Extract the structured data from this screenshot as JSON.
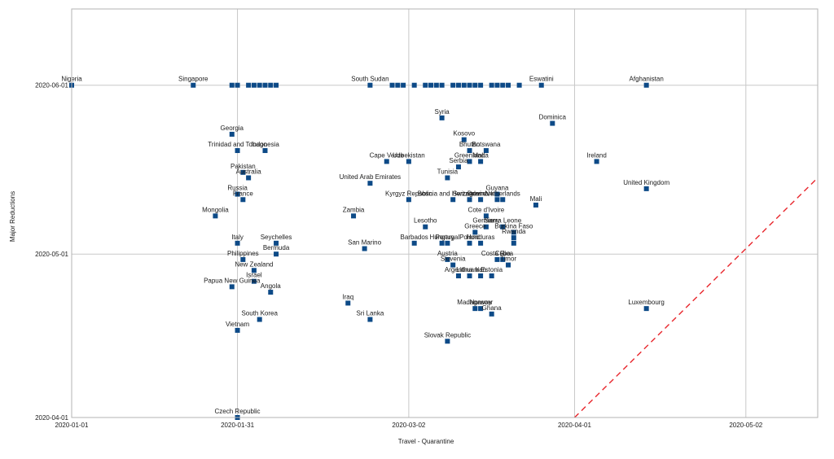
{
  "chart_data": {
    "type": "scatter",
    "title": "",
    "xlabel": "Travel - Quarantine",
    "ylabel": "Major Reductions",
    "x_type": "date",
    "y_type": "date",
    "xlim": [
      "2020-01-01",
      "2020-05-15"
    ],
    "ylim": [
      "2020-04-01",
      "2020-06-15"
    ],
    "x_ticks": [
      "2020-01-01",
      "2020-01-31",
      "2020-03-02",
      "2020-04-01",
      "2020-05-02"
    ],
    "y_ticks": [
      "2020-04-01",
      "2020-05-01",
      "2020-06-01"
    ],
    "grid": true,
    "legend": "none",
    "reference_line": {
      "style": "dashed",
      "color": "#e8262c",
      "description": "y = x"
    },
    "marker_color": "#0d4a87",
    "points": [
      {
        "label": "Nigeria",
        "x": "2020-01-01",
        "y": "2020-06-01"
      },
      {
        "label": "Singapore",
        "x": "2020-01-23",
        "y": "2020-06-01"
      },
      {
        "label": "",
        "x": "2020-01-30",
        "y": "2020-06-01"
      },
      {
        "label": "",
        "x": "2020-01-31",
        "y": "2020-06-01"
      },
      {
        "label": "",
        "x": "2020-02-02",
        "y": "2020-06-01"
      },
      {
        "label": "",
        "x": "2020-02-03",
        "y": "2020-06-01"
      },
      {
        "label": "",
        "x": "2020-02-04",
        "y": "2020-06-01"
      },
      {
        "label": "",
        "x": "2020-02-05",
        "y": "2020-06-01"
      },
      {
        "label": "",
        "x": "2020-02-06",
        "y": "2020-06-01"
      },
      {
        "label": "",
        "x": "2020-02-07",
        "y": "2020-06-01"
      },
      {
        "label": "South Sudan",
        "x": "2020-02-24",
        "y": "2020-06-01"
      },
      {
        "label": "",
        "x": "2020-02-28",
        "y": "2020-06-01"
      },
      {
        "label": "",
        "x": "2020-02-29",
        "y": "2020-06-01"
      },
      {
        "label": "",
        "x": "2020-03-01",
        "y": "2020-06-01"
      },
      {
        "label": "",
        "x": "2020-03-03",
        "y": "2020-06-01"
      },
      {
        "label": "",
        "x": "2020-03-05",
        "y": "2020-06-01"
      },
      {
        "label": "",
        "x": "2020-03-06",
        "y": "2020-06-01"
      },
      {
        "label": "",
        "x": "2020-03-07",
        "y": "2020-06-01"
      },
      {
        "label": "",
        "x": "2020-03-08",
        "y": "2020-06-01"
      },
      {
        "label": "",
        "x": "2020-03-10",
        "y": "2020-06-01"
      },
      {
        "label": "",
        "x": "2020-03-11",
        "y": "2020-06-01"
      },
      {
        "label": "",
        "x": "2020-03-12",
        "y": "2020-06-01"
      },
      {
        "label": "",
        "x": "2020-03-13",
        "y": "2020-06-01"
      },
      {
        "label": "",
        "x": "2020-03-14",
        "y": "2020-06-01"
      },
      {
        "label": "",
        "x": "2020-03-15",
        "y": "2020-06-01"
      },
      {
        "label": "",
        "x": "2020-03-17",
        "y": "2020-06-01"
      },
      {
        "label": "",
        "x": "2020-03-18",
        "y": "2020-06-01"
      },
      {
        "label": "",
        "x": "2020-03-19",
        "y": "2020-06-01"
      },
      {
        "label": "",
        "x": "2020-03-20",
        "y": "2020-06-01"
      },
      {
        "label": "",
        "x": "2020-03-22",
        "y": "2020-06-01"
      },
      {
        "label": "Eswatini",
        "x": "2020-03-26",
        "y": "2020-06-01"
      },
      {
        "label": "Afghanistan",
        "x": "2020-04-14",
        "y": "2020-06-01"
      },
      {
        "label": "Syria",
        "x": "2020-03-08",
        "y": "2020-05-26"
      },
      {
        "label": "Dominica",
        "x": "2020-03-28",
        "y": "2020-05-25"
      },
      {
        "label": "Georgia",
        "x": "2020-01-30",
        "y": "2020-05-23"
      },
      {
        "label": "Kosovo",
        "x": "2020-03-12",
        "y": "2020-05-22"
      },
      {
        "label": "Trinidad and Tobago",
        "x": "2020-01-31",
        "y": "2020-05-20"
      },
      {
        "label": "Indonesia",
        "x": "2020-02-05",
        "y": "2020-05-20"
      },
      {
        "label": "Bhutan",
        "x": "2020-03-13",
        "y": "2020-05-20"
      },
      {
        "label": "Botswana",
        "x": "2020-03-16",
        "y": "2020-05-20"
      },
      {
        "label": "Cape Verde",
        "x": "2020-02-27",
        "y": "2020-05-18"
      },
      {
        "label": "Uzbekistan",
        "x": "2020-03-02",
        "y": "2020-05-18"
      },
      {
        "label": "Greenland",
        "x": "2020-03-13",
        "y": "2020-05-18"
      },
      {
        "label": "Malta",
        "x": "2020-03-15",
        "y": "2020-05-18"
      },
      {
        "label": "Ireland",
        "x": "2020-04-05",
        "y": "2020-05-18"
      },
      {
        "label": "Serbia",
        "x": "2020-03-11",
        "y": "2020-05-17"
      },
      {
        "label": "Pakistan",
        "x": "2020-02-01",
        "y": "2020-05-16"
      },
      {
        "label": "Australia",
        "x": "2020-02-02",
        "y": "2020-05-15"
      },
      {
        "label": "Tunisia",
        "x": "2020-03-09",
        "y": "2020-05-15"
      },
      {
        "label": "United Arab Emirates",
        "x": "2020-02-24",
        "y": "2020-05-14"
      },
      {
        "label": "United Kingdom",
        "x": "2020-04-14",
        "y": "2020-05-13"
      },
      {
        "label": "Guyana",
        "x": "2020-03-18",
        "y": "2020-05-12"
      },
      {
        "label": "Russia",
        "x": "2020-01-31",
        "y": "2020-05-12"
      },
      {
        "label": "France",
        "x": "2020-02-01",
        "y": "2020-05-11"
      },
      {
        "label": "Kyrgyz Republic",
        "x": "2020-03-02",
        "y": "2020-05-11"
      },
      {
        "label": "Bosnia and Herzegovina",
        "x": "2020-03-10",
        "y": "2020-05-11"
      },
      {
        "label": "Switzerland",
        "x": "2020-03-13",
        "y": "2020-05-11"
      },
      {
        "label": "Denmark",
        "x": "2020-03-15",
        "y": "2020-05-11"
      },
      {
        "label": "Netherlands",
        "x": "2020-03-19",
        "y": "2020-05-11"
      },
      {
        "label": "",
        "x": "2020-03-18",
        "y": "2020-05-11"
      },
      {
        "label": "Mali",
        "x": "2020-03-25",
        "y": "2020-05-10"
      },
      {
        "label": "Mongolia",
        "x": "2020-01-27",
        "y": "2020-05-08"
      },
      {
        "label": "Zambia",
        "x": "2020-02-21",
        "y": "2020-05-08"
      },
      {
        "label": "Cote d'Ivoire",
        "x": "2020-03-16",
        "y": "2020-05-08"
      },
      {
        "label": "Lesotho",
        "x": "2020-03-05",
        "y": "2020-05-06"
      },
      {
        "label": "Germany",
        "x": "2020-03-16",
        "y": "2020-05-06"
      },
      {
        "label": "Sierra Leone",
        "x": "2020-03-19",
        "y": "2020-05-06"
      },
      {
        "label": "Greece",
        "x": "2020-03-14",
        "y": "2020-05-05"
      },
      {
        "label": "Burkina Faso",
        "x": "2020-03-21",
        "y": "2020-05-05"
      },
      {
        "label": "Rwanda",
        "x": "2020-03-21",
        "y": "2020-05-04"
      },
      {
        "label": "Italy",
        "x": "2020-01-31",
        "y": "2020-05-03"
      },
      {
        "label": "Seychelles",
        "x": "2020-02-07",
        "y": "2020-05-03"
      },
      {
        "label": "Barbados",
        "x": "2020-03-03",
        "y": "2020-05-03"
      },
      {
        "label": "Hungary",
        "x": "2020-03-08",
        "y": "2020-05-03"
      },
      {
        "label": "Portugal",
        "x": "2020-03-09",
        "y": "2020-05-03"
      },
      {
        "label": "Poland",
        "x": "2020-03-13",
        "y": "2020-05-03"
      },
      {
        "label": "Honduras",
        "x": "2020-03-15",
        "y": "2020-05-03"
      },
      {
        "label": "",
        "x": "2020-03-21",
        "y": "2020-05-03"
      },
      {
        "label": "San Marino",
        "x": "2020-02-23",
        "y": "2020-05-02"
      },
      {
        "label": "Bermuda",
        "x": "2020-02-07",
        "y": "2020-05-01"
      },
      {
        "label": "Philippines",
        "x": "2020-02-01",
        "y": "2020-04-30"
      },
      {
        "label": "Austria",
        "x": "2020-03-09",
        "y": "2020-04-30"
      },
      {
        "label": "Costa Rica",
        "x": "2020-03-18",
        "y": "2020-04-30"
      },
      {
        "label": "Cuba",
        "x": "2020-03-19",
        "y": "2020-04-30"
      },
      {
        "label": "Slovenia",
        "x": "2020-03-10",
        "y": "2020-04-29"
      },
      {
        "label": "Timor",
        "x": "2020-03-20",
        "y": "2020-04-29"
      },
      {
        "label": "New Zealand",
        "x": "2020-02-03",
        "y": "2020-04-28"
      },
      {
        "label": "Argentina",
        "x": "2020-03-11",
        "y": "2020-04-27"
      },
      {
        "label": "Lithuania",
        "x": "2020-03-13",
        "y": "2020-04-27"
      },
      {
        "label": "Iran",
        "x": "2020-03-15",
        "y": "2020-04-27"
      },
      {
        "label": "Estonia",
        "x": "2020-03-17",
        "y": "2020-04-27"
      },
      {
        "label": "Israel",
        "x": "2020-02-03",
        "y": "2020-04-26"
      },
      {
        "label": "Papua New Guinea",
        "x": "2020-01-30",
        "y": "2020-04-25"
      },
      {
        "label": "Angola",
        "x": "2020-02-06",
        "y": "2020-04-24"
      },
      {
        "label": "Iraq",
        "x": "2020-02-20",
        "y": "2020-04-22"
      },
      {
        "label": "Madagascar",
        "x": "2020-03-14",
        "y": "2020-04-21"
      },
      {
        "label": "Norway",
        "x": "2020-03-15",
        "y": "2020-04-21"
      },
      {
        "label": "Ghana",
        "x": "2020-03-17",
        "y": "2020-04-20"
      },
      {
        "label": "Luxembourg",
        "x": "2020-04-14",
        "y": "2020-04-21"
      },
      {
        "label": "Sri Lanka",
        "x": "2020-02-24",
        "y": "2020-04-19"
      },
      {
        "label": "South Korea",
        "x": "2020-02-04",
        "y": "2020-04-19"
      },
      {
        "label": "Vietnam",
        "x": "2020-01-31",
        "y": "2020-04-17"
      },
      {
        "label": "Slovak Republic",
        "x": "2020-03-09",
        "y": "2020-04-15"
      },
      {
        "label": "Czech Republic",
        "x": "2020-01-31",
        "y": "2020-04-01"
      }
    ]
  }
}
